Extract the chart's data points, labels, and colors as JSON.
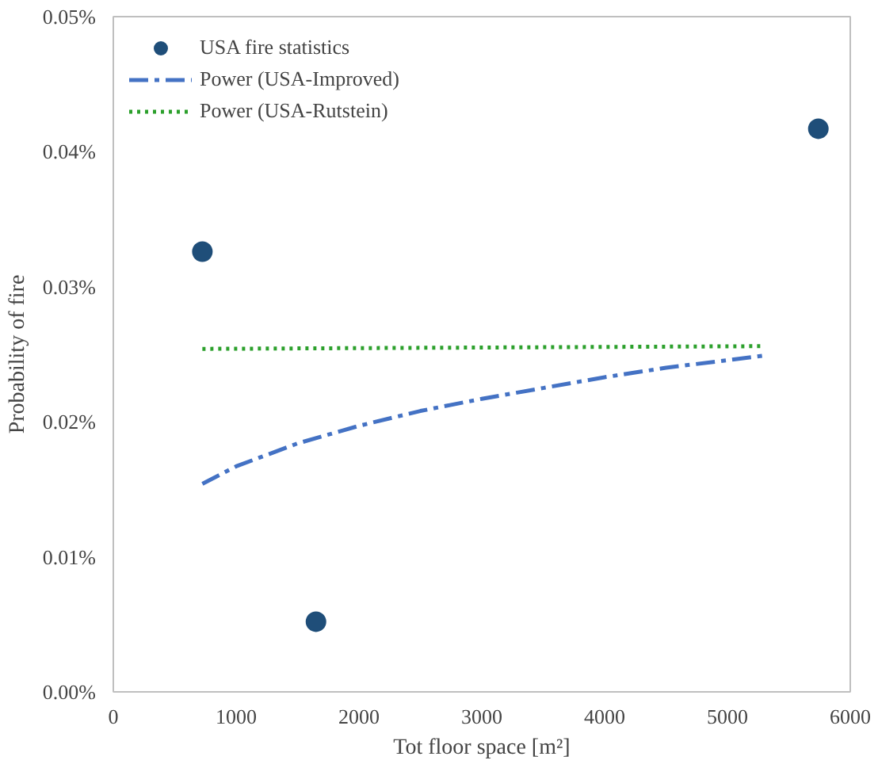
{
  "chart_data": {
    "type": "scatter",
    "xlabel": "Tot floor space [m²]",
    "ylabel": "Probability of fire",
    "xlim": [
      0,
      6000
    ],
    "xticks": [
      0,
      1000,
      2000,
      3000,
      4000,
      5000,
      6000
    ],
    "ylim": [
      0,
      0.05
    ],
    "yticks": [
      {
        "value": 0,
        "label": "0.00%"
      },
      {
        "value": 0.01,
        "label": "0.01%"
      },
      {
        "value": 0.02,
        "label": "0.02%"
      },
      {
        "value": 0.03,
        "label": "0.03%"
      },
      {
        "value": 0.04,
        "label": "0.04%"
      },
      {
        "value": 0.05,
        "label": "0.05%"
      }
    ],
    "grid": false,
    "legend": "top left",
    "series": [
      {
        "name": "USA fire statistics",
        "marker": "circle",
        "color": "#1f4e79",
        "x": [
          725,
          1650,
          5740
        ],
        "values": [
          0.0326,
          0.0052,
          0.0417
        ]
      },
      {
        "name": "Power (USA-Improved)",
        "type": "line",
        "line_style": "dashed",
        "color": "#4472c4",
        "x": [
          725,
          1000,
          1500,
          2000,
          2500,
          3000,
          3500,
          4000,
          4500,
          5300
        ],
        "values": [
          0.0154,
          0.0167,
          0.0184,
          0.0197,
          0.0208,
          0.0217,
          0.0225,
          0.0233,
          0.024,
          0.0249
        ]
      },
      {
        "name": "Power (USA-Rutstein)",
        "type": "line",
        "line_style": "dotted",
        "color": "#2ca02c",
        "x": [
          725,
          5300
        ],
        "values": [
          0.0254,
          0.0256
        ]
      }
    ]
  }
}
